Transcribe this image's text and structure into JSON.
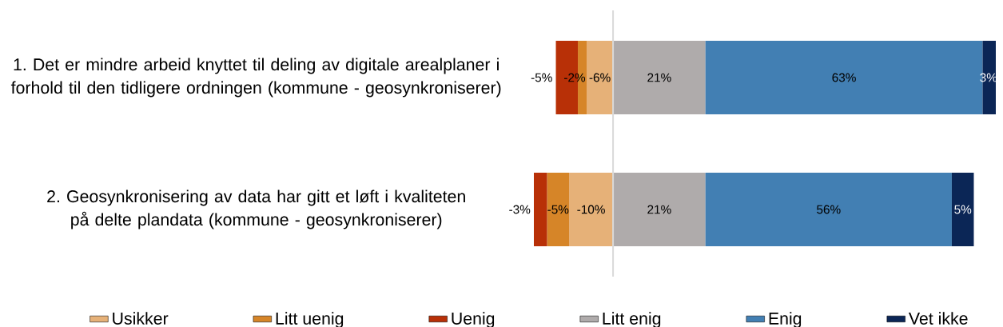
{
  "chart_data": {
    "type": "bar",
    "orientation": "horizontal",
    "stacked": true,
    "categories": [
      "1. Det er mindre arbeid knyttet til deling av digitale arealplaner i forhold til den tidligere ordningen (kommune - geosynkroniserer)",
      "2. Geosynkronisering av data har gitt et løft i kvaliteten på delte plandata (kommune - geosynkroniserer)"
    ],
    "series": [
      {
        "name": "Usikker",
        "color": "#e6b178",
        "values": [
          -6,
          -10
        ],
        "value_labels": [
          "-6%",
          "-10%"
        ]
      },
      {
        "name": "Litt uenig",
        "color": "#d68528",
        "values": [
          -2,
          -5
        ],
        "value_labels": [
          "-2%",
          "-5%"
        ]
      },
      {
        "name": "Uenig",
        "color": "#b83007",
        "values": [
          -5,
          -3
        ],
        "value_labels": [
          "-5%",
          "-3%"
        ]
      },
      {
        "name": "Litt enig",
        "color": "#afabab",
        "values": [
          21,
          21
        ],
        "value_labels": [
          "21%",
          "21%"
        ]
      },
      {
        "name": "Enig",
        "color": "#427fb3",
        "values": [
          63,
          56
        ],
        "value_labels": [
          "63%",
          "56%"
        ]
      },
      {
        "name": "Vet ikke",
        "color": "#0b2656",
        "values": [
          3,
          5
        ],
        "value_labels": [
          "3%",
          "5%"
        ]
      }
    ],
    "xlim": [
      -18,
      87
    ],
    "ref_lines": [
      {
        "axis": "x",
        "value": 0,
        "color": "#d9d9d9"
      }
    ],
    "legend": "bottom",
    "tick_labels": "y"
  }
}
